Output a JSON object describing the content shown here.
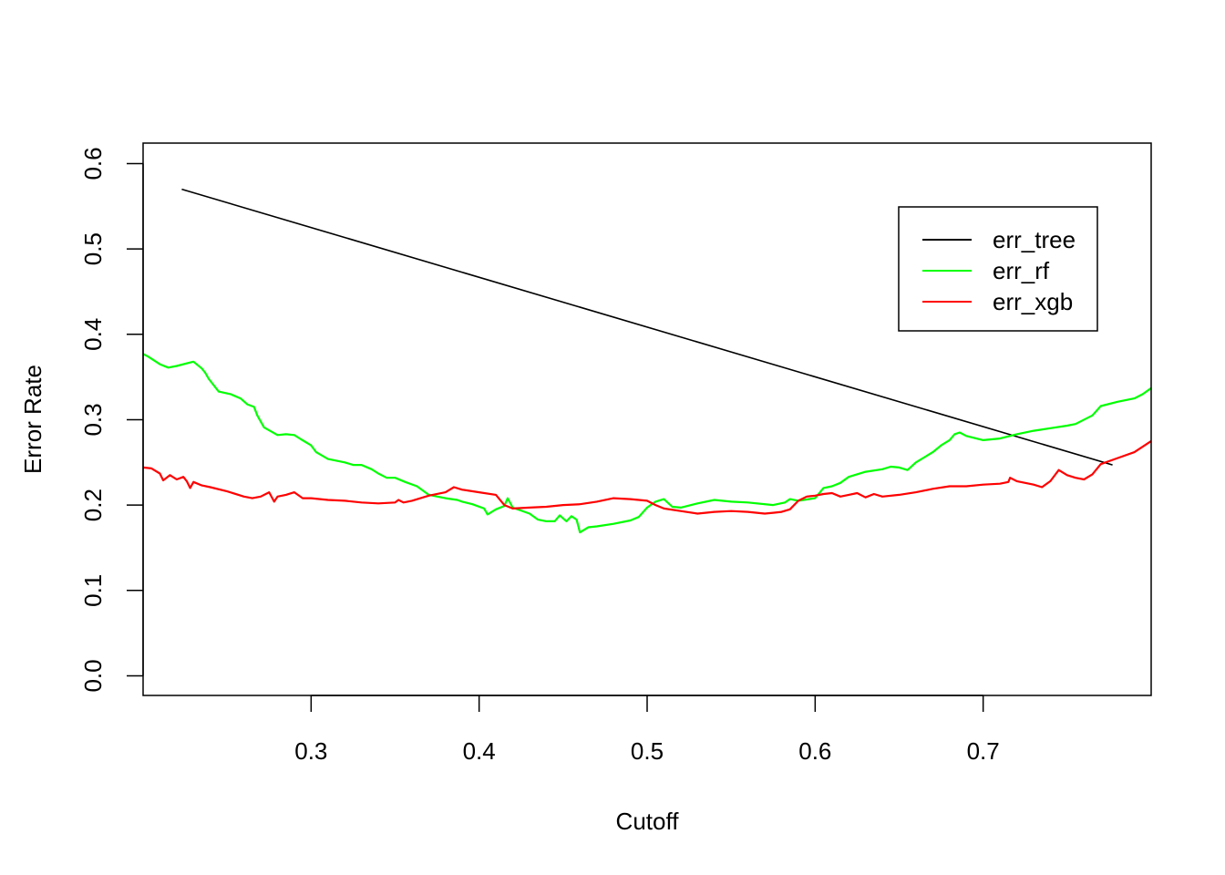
{
  "chart_data": {
    "type": "line",
    "title": "",
    "xlabel": "Cutoff",
    "ylabel": "Error Rate",
    "xlim": [
      0.2,
      0.8
    ],
    "ylim": [
      -0.023,
      0.624
    ],
    "xticks": [
      0.3,
      0.4,
      0.5,
      0.6,
      0.7
    ],
    "xtick_labels": [
      "0.3",
      "0.4",
      "0.5",
      "0.6",
      "0.7"
    ],
    "yticks": [
      0.0,
      0.1,
      0.2,
      0.3,
      0.4,
      0.5,
      0.6
    ],
    "ytick_labels": [
      "0.0",
      "0.1",
      "0.2",
      "0.3",
      "0.4",
      "0.5",
      "0.6"
    ],
    "grid": false,
    "legend_position": "top-right",
    "series": [
      {
        "name": "err_tree",
        "color": "#000000",
        "x": [
          0.223,
          0.777
        ],
        "y": [
          0.57,
          0.247
        ]
      },
      {
        "name": "err_rf",
        "color": "#00ff00",
        "x": [
          0.2,
          0.203,
          0.21,
          0.215,
          0.22,
          0.228,
          0.23,
          0.235,
          0.237,
          0.239,
          0.245,
          0.252,
          0.258,
          0.262,
          0.266,
          0.268,
          0.272,
          0.28,
          0.285,
          0.29,
          0.294,
          0.3,
          0.303,
          0.31,
          0.32,
          0.325,
          0.33,
          0.336,
          0.34,
          0.345,
          0.35,
          0.356,
          0.363,
          0.37,
          0.38,
          0.387,
          0.39,
          0.396,
          0.403,
          0.405,
          0.41,
          0.415,
          0.417,
          0.42,
          0.43,
          0.435,
          0.44,
          0.445,
          0.448,
          0.452,
          0.455,
          0.458,
          0.46,
          0.465,
          0.47,
          0.48,
          0.49,
          0.495,
          0.5,
          0.505,
          0.51,
          0.515,
          0.52,
          0.53,
          0.54,
          0.55,
          0.56,
          0.575,
          0.582,
          0.585,
          0.59,
          0.6,
          0.605,
          0.61,
          0.615,
          0.62,
          0.63,
          0.64,
          0.645,
          0.65,
          0.655,
          0.66,
          0.67,
          0.675,
          0.68,
          0.683,
          0.686,
          0.69,
          0.7,
          0.71,
          0.72,
          0.73,
          0.74,
          0.75,
          0.755,
          0.765,
          0.77,
          0.78,
          0.79,
          0.795,
          0.8
        ],
        "y": [
          0.377,
          0.374,
          0.365,
          0.361,
          0.363,
          0.367,
          0.368,
          0.36,
          0.355,
          0.348,
          0.333,
          0.33,
          0.325,
          0.318,
          0.315,
          0.305,
          0.291,
          0.282,
          0.283,
          0.282,
          0.277,
          0.27,
          0.262,
          0.254,
          0.25,
          0.247,
          0.247,
          0.242,
          0.237,
          0.232,
          0.232,
          0.227,
          0.222,
          0.212,
          0.208,
          0.206,
          0.204,
          0.201,
          0.196,
          0.189,
          0.195,
          0.199,
          0.208,
          0.197,
          0.19,
          0.183,
          0.181,
          0.181,
          0.188,
          0.181,
          0.187,
          0.183,
          0.168,
          0.174,
          0.175,
          0.178,
          0.182,
          0.186,
          0.197,
          0.204,
          0.207,
          0.198,
          0.197,
          0.202,
          0.206,
          0.204,
          0.203,
          0.2,
          0.203,
          0.207,
          0.205,
          0.208,
          0.22,
          0.222,
          0.226,
          0.233,
          0.239,
          0.242,
          0.245,
          0.244,
          0.241,
          0.25,
          0.262,
          0.27,
          0.276,
          0.283,
          0.285,
          0.281,
          0.276,
          0.278,
          0.283,
          0.287,
          0.29,
          0.293,
          0.295,
          0.305,
          0.316,
          0.321,
          0.325,
          0.33,
          0.337
        ]
      },
      {
        "name": "err_xgb",
        "color": "#ff0000",
        "x": [
          0.2,
          0.205,
          0.21,
          0.212,
          0.216,
          0.22,
          0.224,
          0.226,
          0.228,
          0.23,
          0.235,
          0.24,
          0.25,
          0.26,
          0.265,
          0.27,
          0.275,
          0.278,
          0.28,
          0.285,
          0.29,
          0.295,
          0.3,
          0.31,
          0.32,
          0.33,
          0.34,
          0.35,
          0.352,
          0.355,
          0.36,
          0.37,
          0.38,
          0.385,
          0.39,
          0.4,
          0.41,
          0.415,
          0.42,
          0.43,
          0.44,
          0.45,
          0.46,
          0.47,
          0.48,
          0.49,
          0.5,
          0.505,
          0.51,
          0.52,
          0.53,
          0.54,
          0.55,
          0.56,
          0.57,
          0.575,
          0.58,
          0.585,
          0.59,
          0.595,
          0.6,
          0.605,
          0.61,
          0.615,
          0.62,
          0.625,
          0.63,
          0.635,
          0.64,
          0.65,
          0.66,
          0.67,
          0.68,
          0.69,
          0.7,
          0.71,
          0.715,
          0.716,
          0.72,
          0.73,
          0.735,
          0.74,
          0.745,
          0.75,
          0.755,
          0.76,
          0.765,
          0.77,
          0.78,
          0.79,
          0.8
        ],
        "y": [
          0.244,
          0.243,
          0.237,
          0.229,
          0.235,
          0.23,
          0.233,
          0.228,
          0.22,
          0.227,
          0.223,
          0.221,
          0.216,
          0.21,
          0.208,
          0.21,
          0.215,
          0.204,
          0.21,
          0.212,
          0.215,
          0.208,
          0.208,
          0.206,
          0.205,
          0.203,
          0.202,
          0.203,
          0.206,
          0.203,
          0.205,
          0.211,
          0.215,
          0.221,
          0.218,
          0.215,
          0.212,
          0.2,
          0.196,
          0.197,
          0.198,
          0.2,
          0.201,
          0.204,
          0.208,
          0.207,
          0.205,
          0.2,
          0.196,
          0.193,
          0.19,
          0.192,
          0.193,
          0.192,
          0.19,
          0.191,
          0.192,
          0.195,
          0.205,
          0.21,
          0.211,
          0.213,
          0.214,
          0.21,
          0.212,
          0.214,
          0.209,
          0.213,
          0.21,
          0.212,
          0.215,
          0.219,
          0.222,
          0.222,
          0.224,
          0.225,
          0.227,
          0.232,
          0.228,
          0.224,
          0.221,
          0.228,
          0.241,
          0.235,
          0.232,
          0.23,
          0.236,
          0.248,
          0.255,
          0.262,
          0.275
        ]
      }
    ]
  }
}
